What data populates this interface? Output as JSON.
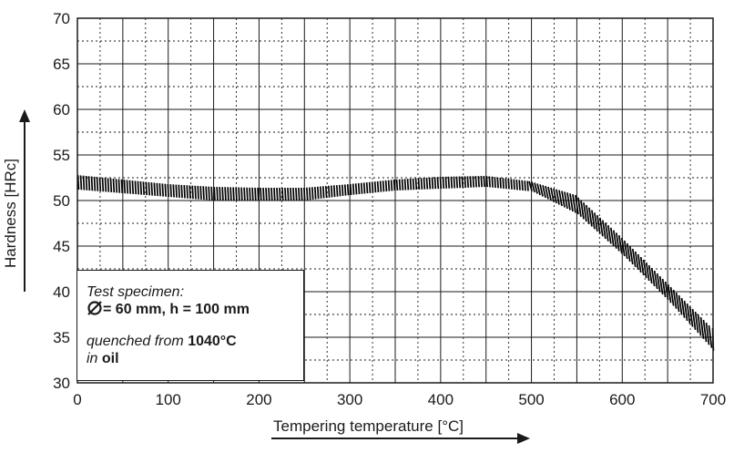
{
  "chart_data": {
    "type": "area",
    "xlabel": "Tempering temperature [°C]",
    "ylabel": "Hardness [HRc]",
    "xlim": [
      0,
      700
    ],
    "ylim": [
      30,
      70
    ],
    "x_ticks": [
      "0",
      "100",
      "200",
      "300",
      "400",
      "500",
      "600",
      "700"
    ],
    "y_ticks": [
      "30",
      "35",
      "40",
      "45",
      "50",
      "55",
      "60",
      "65",
      "70"
    ],
    "grid": true,
    "series": [
      {
        "x": [
          0,
          50,
          100,
          150,
          200,
          250,
          300,
          350,
          400,
          450,
          500,
          550,
          600,
          650,
          700
        ],
        "upper": [
          52.8,
          52.3,
          51.8,
          51.5,
          51.4,
          51.4,
          51.8,
          52.3,
          52.6,
          52.7,
          52.1,
          50.6,
          46.0,
          41.0,
          36.0
        ],
        "lower": [
          51.2,
          50.8,
          50.4,
          50.0,
          50.0,
          50.0,
          50.6,
          51.1,
          51.3,
          51.5,
          51.0,
          48.5,
          44.0,
          39.0,
          33.5
        ]
      }
    ]
  },
  "legend": {
    "line1": "Test specimen:",
    "dim_value": "= 60 mm, h = 100 mm",
    "quenched_prefix": "quenched from ",
    "quenched_temp": "1040°C",
    "medium_prefix": "in ",
    "medium": "oil"
  },
  "colors": {
    "band": "#000000",
    "grid": "#1a1a1a"
  },
  "icons": {
    "diameter": "diameter-symbol-icon"
  }
}
